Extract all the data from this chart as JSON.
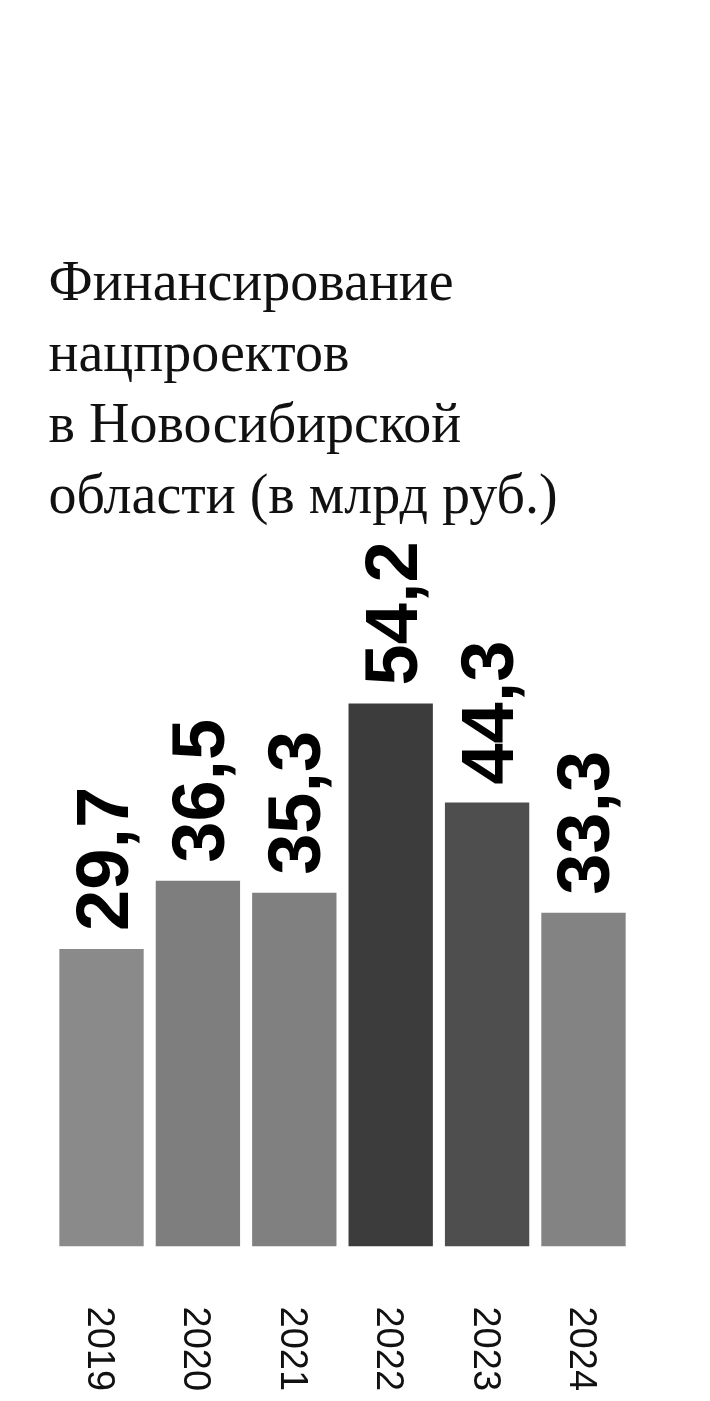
{
  "chart_data": {
    "type": "bar",
    "title": "Финансирование\nнацпроектов\nв Новосибирской\nобласти (в млрд руб.)",
    "categories": [
      "2019",
      "2020",
      "2021",
      "2022",
      "2023",
      "2024"
    ],
    "values": [
      29.7,
      36.5,
      35.3,
      54.2,
      44.3,
      33.3
    ],
    "colors": [
      "#8a8a8a",
      "#7e7e7e",
      "#808080",
      "#3c3c3c",
      "#4e4e4e",
      "#838383"
    ],
    "value_labels": [
      "29,7",
      "36,5",
      "35,3",
      "54,2",
      "44,3",
      "33,3"
    ],
    "grid": false
  }
}
